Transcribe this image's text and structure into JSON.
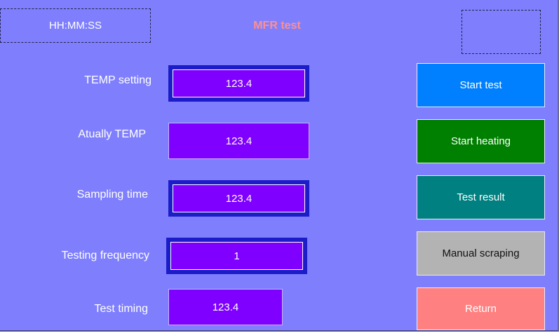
{
  "header": {
    "clock": "HH:MM:SS",
    "title": "MFR test"
  },
  "fields": {
    "temp_setting": {
      "label": "TEMP setting",
      "value": "123.4"
    },
    "actual_temp": {
      "label": "Atually TEMP",
      "value": "123.4"
    },
    "sampling_time": {
      "label": "Sampling time",
      "value": "123.4"
    },
    "testing_frequency": {
      "label": "Testing frequency",
      "value": "1"
    },
    "test_timing": {
      "label": "Test timing",
      "value": "123.4"
    }
  },
  "buttons": {
    "start_test": {
      "label": "Start test",
      "color": "#0080ff"
    },
    "start_heating": {
      "label": "Start heating",
      "color": "#008000"
    },
    "test_result": {
      "label": "Test result",
      "color": "#008080"
    },
    "manual_scraping": {
      "label": "Manual scraping",
      "color": "#b3b3b3"
    },
    "return": {
      "label": "Return",
      "color": "#ff8080"
    }
  },
  "colors": {
    "background": "#7f7ffe",
    "field": "#8000ff",
    "title": "#ff8f8f"
  }
}
